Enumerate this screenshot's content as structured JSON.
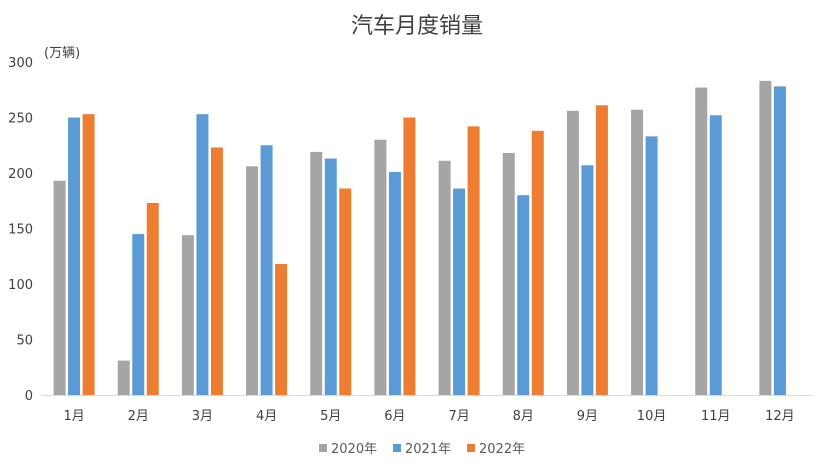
{
  "chart_data": {
    "type": "bar",
    "title": "汽车月度销量",
    "ylabel": "(万辆)",
    "xlabel": "",
    "categories": [
      "1月",
      "2月",
      "3月",
      "4月",
      "5月",
      "6月",
      "7月",
      "8月",
      "9月",
      "10月",
      "11月",
      "12月"
    ],
    "series": [
      {
        "name": "2020年",
        "color": "#a5a5a5",
        "values": [
          193,
          31,
          144,
          206,
          219,
          230,
          211,
          218,
          256,
          257,
          277,
          283
        ]
      },
      {
        "name": "2021年",
        "color": "#5b9bd5",
        "values": [
          250,
          145,
          253,
          225,
          213,
          201,
          186,
          180,
          207,
          233,
          252,
          278
        ]
      },
      {
        "name": "2022年",
        "color": "#ed7d31",
        "values": [
          253,
          173,
          223,
          118,
          186,
          250,
          242,
          238,
          261,
          null,
          null,
          null
        ]
      }
    ],
    "ylim": [
      0,
      300
    ],
    "yticks": [
      0,
      50,
      100,
      150,
      200,
      250,
      300
    ],
    "grid": false,
    "legend_position": "bottom"
  }
}
